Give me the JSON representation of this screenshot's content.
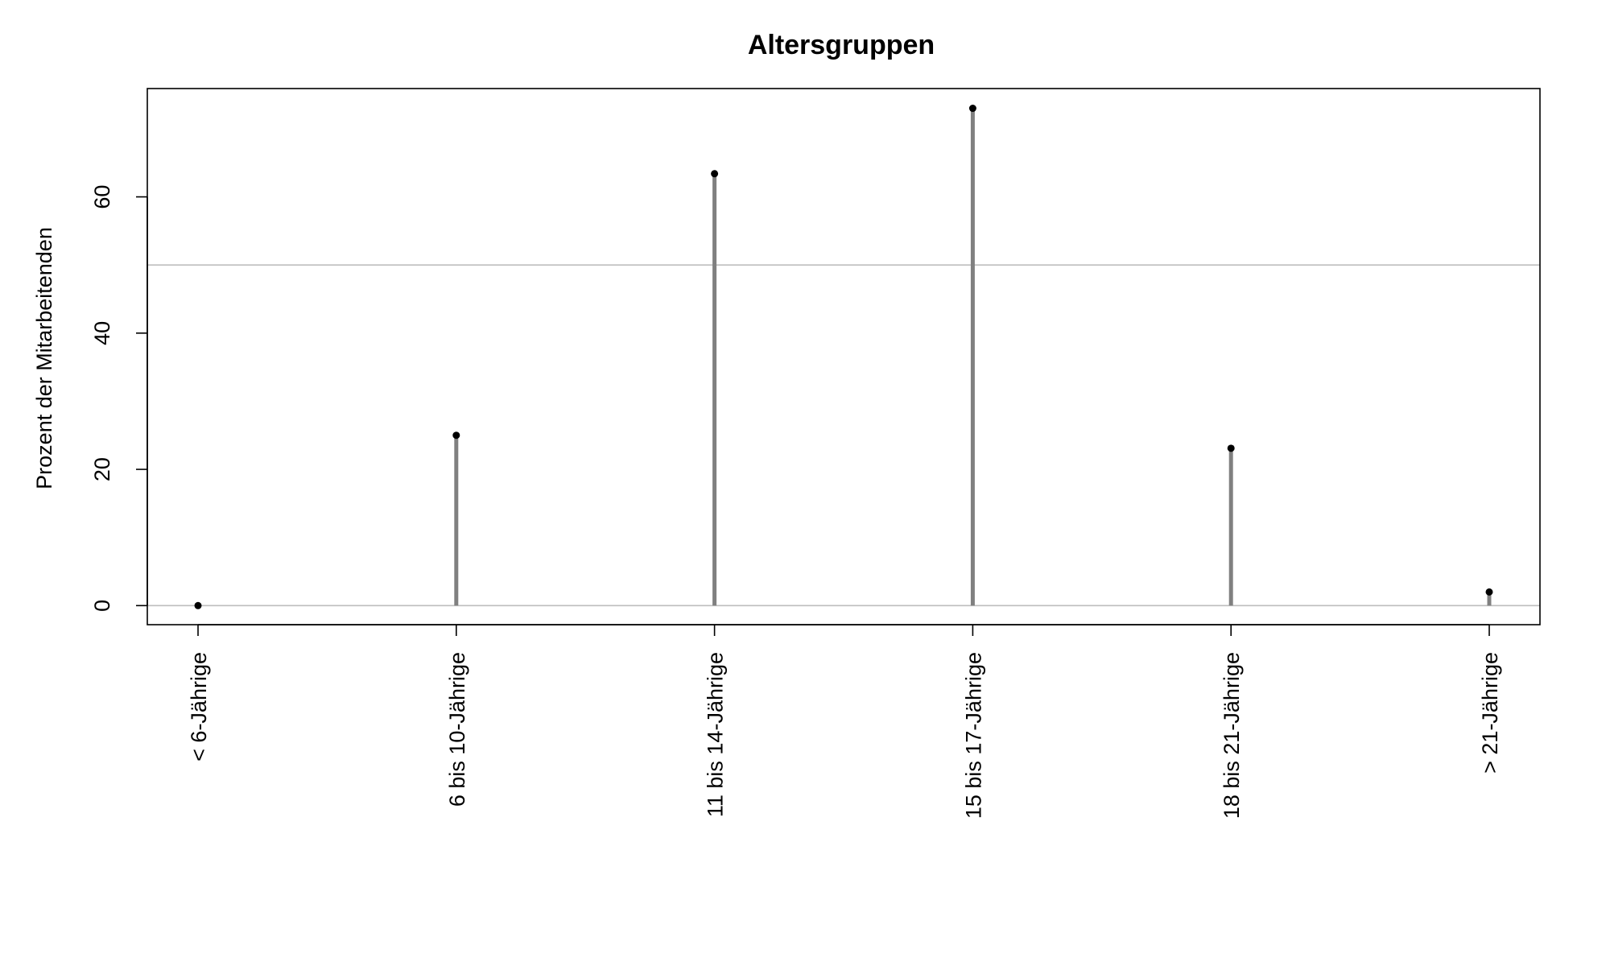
{
  "chart_data": {
    "type": "lollipop",
    "title": "Altersgruppen",
    "xlabel": "",
    "ylabel": "Prozent der Mitarbeitenden",
    "categories": [
      "< 6-Jährige",
      "6 bis 10-Jährige",
      "11 bis 14-Jährige",
      "15 bis 17-Jährige",
      "18 bis 21-Jährige",
      "> 21-Jährige"
    ],
    "values": [
      0,
      25,
      63.4,
      73,
      23.1,
      2
    ],
    "ylim": [
      -2.8,
      75.9
    ],
    "yticks": [
      0,
      20,
      40,
      60
    ],
    "reference_lines": [
      0,
      50
    ],
    "grid": false,
    "legend": "none",
    "colors": {
      "stem": "#808080",
      "point": "#000000",
      "reference_line": "#bebebe",
      "frame": "#000000"
    }
  }
}
